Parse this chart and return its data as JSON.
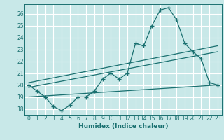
{
  "xlabel": "Humidex (Indice chaleur)",
  "bg_color": "#c8e8e8",
  "grid_color": "#ffffff",
  "line_color": "#1a7070",
  "xlim": [
    -0.5,
    23.5
  ],
  "ylim": [
    17.5,
    26.8
  ],
  "xticks": [
    0,
    1,
    2,
    3,
    4,
    5,
    6,
    7,
    8,
    9,
    10,
    11,
    12,
    13,
    14,
    15,
    16,
    17,
    18,
    19,
    20,
    21,
    22,
    23
  ],
  "yticks": [
    18,
    19,
    20,
    21,
    22,
    23,
    24,
    25,
    26
  ],
  "line1_x": [
    0,
    1,
    2,
    3,
    4,
    5,
    6,
    7,
    8,
    9,
    10,
    11,
    12,
    13,
    14,
    15,
    16,
    17,
    18,
    19,
    20,
    21,
    22,
    23
  ],
  "line1_y": [
    20.0,
    19.5,
    19.0,
    18.2,
    17.85,
    18.3,
    19.0,
    19.0,
    19.5,
    20.5,
    21.0,
    20.5,
    21.0,
    23.5,
    23.3,
    25.0,
    26.3,
    26.5,
    25.5,
    23.5,
    22.8,
    22.2,
    20.2,
    20.0
  ],
  "line2_x": [
    0,
    23
  ],
  "line2_y": [
    20.2,
    23.3
  ],
  "line3_x": [
    0,
    23
  ],
  "line3_y": [
    19.8,
    22.8
  ],
  "line4_x": [
    0,
    23
  ],
  "line4_y": [
    19.0,
    20.0
  ]
}
